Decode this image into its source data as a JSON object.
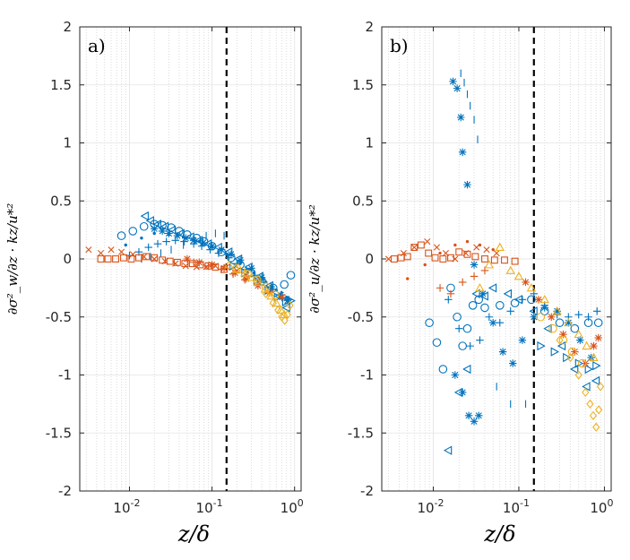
{
  "chart_data": [
    {
      "type": "scatter",
      "panel_label": "a)",
      "xscale": "log",
      "xlim": [
        0.0025,
        1.2
      ],
      "ylim": [
        -2,
        2
      ],
      "xticks": [
        0.01,
        0.1,
        1
      ],
      "xtick_labels": [
        {
          "base": "10",
          "exp": "-2"
        },
        {
          "base": "10",
          "exp": "-1"
        },
        {
          "base": "10",
          "exp": "0"
        }
      ],
      "yticks": [
        -2,
        -1.5,
        -1,
        -0.5,
        0,
        0.5,
        1,
        1.5,
        2
      ],
      "ytick_labels": [
        "-2",
        "-1.5",
        "-1",
        "-0.5",
        "0",
        "0.5",
        "1",
        "1.5",
        "2"
      ],
      "xlabel": "z/δ",
      "ylabel": "∂σ²_w/∂z · kz/u*²",
      "grid": true,
      "reference_line": {
        "x": 0.15,
        "style": "dashed"
      },
      "colors": {
        "blue": "#0072BD",
        "orange": "#D95319",
        "yellow": "#EDB120"
      },
      "series": [
        {
          "name": "blue-plus",
          "marker": "plus",
          "color": "#0072BD",
          "x": [
            0.01,
            0.013,
            0.017,
            0.022,
            0.028,
            0.036,
            0.046,
            0.06,
            0.075,
            0.095,
            0.12,
            0.16,
            0.2,
            0.26,
            0.33,
            0.42,
            0.55,
            0.7,
            0.85
          ],
          "y": [
            0.03,
            0.06,
            0.1,
            0.13,
            0.15,
            0.16,
            0.15,
            0.13,
            0.11,
            0.08,
            0.05,
            0.01,
            -0.04,
            -0.09,
            -0.14,
            -0.2,
            -0.26,
            -0.31,
            -0.35
          ]
        },
        {
          "name": "blue-circle",
          "marker": "circle",
          "color": "#0072BD",
          "x": [
            0.008,
            0.011,
            0.015,
            0.02,
            0.025,
            0.032,
            0.04,
            0.05,
            0.065,
            0.08,
            0.1,
            0.13,
            0.17,
            0.22,
            0.3,
            0.4,
            0.55,
            0.75,
            0.9
          ],
          "y": [
            0.2,
            0.24,
            0.28,
            0.3,
            0.29,
            0.27,
            0.24,
            0.21,
            0.18,
            0.15,
            0.11,
            0.06,
            0.01,
            -0.05,
            -0.12,
            -0.19,
            -0.25,
            -0.22,
            -0.14
          ]
        },
        {
          "name": "blue-triangle-left",
          "marker": "triangle-left",
          "color": "#0072BD",
          "x": [
            0.0155,
            0.018,
            0.022,
            0.027,
            0.033,
            0.042,
            0.055,
            0.07,
            0.09,
            0.12,
            0.16,
            0.21,
            0.28,
            0.38,
            0.5,
            0.65,
            0.8
          ],
          "y": [
            0.37,
            0.33,
            0.3,
            0.28,
            0.25,
            0.22,
            0.19,
            0.16,
            0.13,
            0.1,
            0.06,
            0.0,
            -0.07,
            -0.15,
            -0.23,
            -0.32,
            -0.42
          ]
        },
        {
          "name": "blue-star",
          "marker": "star",
          "color": "#0072BD",
          "x": [
            0.02,
            0.025,
            0.03,
            0.038,
            0.048,
            0.06,
            0.078,
            0.1,
            0.13,
            0.17,
            0.22,
            0.3,
            0.4,
            0.52,
            0.68,
            0.82
          ],
          "y": [
            0.26,
            0.24,
            0.22,
            0.2,
            0.18,
            0.16,
            0.14,
            0.11,
            0.08,
            0.04,
            -0.01,
            -0.08,
            -0.16,
            -0.24,
            -0.31,
            -0.36
          ]
        },
        {
          "name": "blue-vbar",
          "marker": "vbar",
          "color": "#0072BD",
          "x": [
            0.014,
            0.018,
            0.024,
            0.032,
            0.045,
            0.062,
            0.085,
            0.11,
            0.14
          ],
          "y": [
            0.0,
            0.02,
            0.05,
            0.08,
            0.12,
            0.16,
            0.2,
            0.22,
            0.2
          ]
        },
        {
          "name": "blue-triangle-right",
          "marker": "triangle-right",
          "color": "#0072BD",
          "x": [
            0.18,
            0.25,
            0.35,
            0.48,
            0.62,
            0.78,
            0.9
          ],
          "y": [
            -0.06,
            -0.12,
            -0.19,
            -0.27,
            -0.33,
            -0.37,
            -0.36
          ]
        },
        {
          "name": "blue-dot",
          "marker": "dot",
          "color": "#0072BD",
          "x": [
            0.009,
            0.014,
            0.02,
            0.03,
            0.045,
            0.07,
            0.1,
            0.15,
            0.22,
            0.32,
            0.45,
            0.6,
            0.8
          ],
          "y": [
            0.12,
            0.18,
            0.22,
            0.21,
            0.19,
            0.15,
            0.1,
            0.04,
            -0.04,
            -0.12,
            -0.2,
            -0.27,
            -0.33
          ]
        },
        {
          "name": "orange-x",
          "marker": "x",
          "color": "#D95319",
          "x": [
            0.0032,
            0.0045,
            0.006,
            0.008,
            0.011,
            0.015,
            0.02,
            0.027,
            0.036,
            0.048,
            0.065,
            0.085,
            0.11,
            0.15,
            0.2,
            0.26,
            0.35
          ],
          "y": [
            0.08,
            0.05,
            0.08,
            0.06,
            0.04,
            0.02,
            0.0,
            -0.02,
            -0.04,
            -0.06,
            -0.07,
            -0.07,
            -0.06,
            -0.07,
            -0.1,
            -0.14,
            -0.19
          ]
        },
        {
          "name": "orange-square",
          "marker": "square",
          "color": "#D95319",
          "x": [
            0.0045,
            0.0055,
            0.0068,
            0.0085,
            0.0105,
            0.013,
            0.016,
            0.02,
            0.025,
            0.031,
            0.038,
            0.047,
            0.058,
            0.072,
            0.09,
            0.11,
            0.14
          ],
          "y": [
            0.0,
            0.0,
            0.0,
            0.01,
            0.0,
            0.01,
            0.02,
            0.01,
            -0.01,
            -0.02,
            -0.03,
            -0.04,
            -0.04,
            -0.05,
            -0.06,
            -0.07,
            -0.09
          ]
        },
        {
          "name": "orange-star",
          "marker": "star",
          "color": "#D95319",
          "x": [
            0.05,
            0.07,
            0.1,
            0.14,
            0.19,
            0.26,
            0.36,
            0.5,
            0.7
          ],
          "y": [
            0.0,
            -0.03,
            -0.05,
            -0.08,
            -0.12,
            -0.17,
            -0.23,
            -0.29,
            -0.33
          ]
        },
        {
          "name": "orange-plus",
          "marker": "plus",
          "color": "#D95319",
          "x": [
            0.06,
            0.09,
            0.13,
            0.18,
            0.25
          ],
          "y": [
            -0.03,
            -0.06,
            -0.09,
            -0.13,
            -0.18
          ]
        },
        {
          "name": "yellow-diamond",
          "marker": "diamond",
          "color": "#EDB120",
          "x": [
            0.45,
            0.55,
            0.63,
            0.7,
            0.76,
            0.82,
            0.88
          ],
          "y": [
            -0.3,
            -0.38,
            -0.44,
            -0.5,
            -0.53,
            -0.48,
            -0.4
          ]
        },
        {
          "name": "yellow-triangle-up",
          "marker": "triangle-up",
          "color": "#EDB120",
          "x": [
            0.16,
            0.2,
            0.25,
            0.3,
            0.36,
            0.44,
            0.52,
            0.6,
            0.68,
            0.75
          ],
          "y": [
            -0.05,
            -0.09,
            -0.12,
            -0.16,
            -0.2,
            -0.26,
            -0.32,
            -0.38,
            -0.44,
            -0.48
          ]
        },
        {
          "name": "yellow-circle",
          "marker": "circle",
          "color": "#EDB120",
          "x": [
            0.2,
            0.27,
            0.35,
            0.45,
            0.58
          ],
          "y": [
            -0.08,
            -0.13,
            -0.18,
            -0.24,
            -0.31
          ]
        }
      ]
    },
    {
      "type": "scatter",
      "panel_label": "b)",
      "xscale": "log",
      "xlim": [
        0.0025,
        1.2
      ],
      "ylim": [
        -2,
        2
      ],
      "xticks": [
        0.01,
        0.1,
        1
      ],
      "xtick_labels": [
        {
          "base": "10",
          "exp": "-2"
        },
        {
          "base": "10",
          "exp": "-1"
        },
        {
          "base": "10",
          "exp": "0"
        }
      ],
      "yticks": [
        -2,
        -1.5,
        -1,
        -0.5,
        0,
        0.5,
        1,
        1.5,
        2
      ],
      "ytick_labels": [
        "-2",
        "-1.5",
        "-1",
        "-0.5",
        "0",
        "0.5",
        "1",
        "1.5",
        "2"
      ],
      "xlabel": "z/δ",
      "ylabel": "∂σ²_u/∂z · kz/u*²",
      "grid": true,
      "reference_line": {
        "x": 0.15,
        "style": "dashed"
      },
      "colors": {
        "blue": "#0072BD",
        "orange": "#D95319",
        "yellow": "#EDB120"
      },
      "series": [
        {
          "name": "blue-star",
          "marker": "star",
          "color": "#0072BD",
          "x": [
            0.017,
            0.019,
            0.021,
            0.022,
            0.025,
            0.03,
            0.038,
            0.05,
            0.065,
            0.085,
            0.11,
            0.15,
            0.2,
            0.28,
            0.38,
            0.52,
            0.7
          ],
          "y": [
            1.53,
            1.47,
            1.22,
            0.92,
            0.64,
            -0.05,
            -0.3,
            -0.55,
            -0.8,
            -0.9,
            -0.7,
            -0.5,
            -0.42,
            -0.45,
            -0.55,
            -0.7,
            -0.85
          ]
        },
        {
          "name": "blue-vbar",
          "marker": "vbar",
          "color": "#0072BD",
          "x": [
            0.021,
            0.023,
            0.025,
            0.027,
            0.03,
            0.033,
            0.055,
            0.08,
            0.12
          ],
          "y": [
            1.6,
            1.52,
            1.42,
            1.32,
            1.2,
            1.03,
            -1.1,
            -1.25,
            -1.25
          ]
        },
        {
          "name": "blue-circle",
          "marker": "circle",
          "color": "#0072BD",
          "x": [
            0.009,
            0.011,
            0.013,
            0.016,
            0.019,
            0.022,
            0.025,
            0.029,
            0.034,
            0.04,
            0.06,
            0.09,
            0.14,
            0.2,
            0.3,
            0.45,
            0.65,
            0.85
          ],
          "y": [
            -0.55,
            -0.72,
            -0.95,
            -0.25,
            -0.5,
            -0.75,
            -0.6,
            -0.4,
            -0.35,
            -0.42,
            -0.4,
            -0.38,
            -0.35,
            -0.45,
            -0.55,
            -0.6,
            -0.55,
            -0.55
          ]
        },
        {
          "name": "blue-triangle-left",
          "marker": "triangle-left",
          "color": "#0072BD",
          "x": [
            0.015,
            0.02,
            0.025,
            0.032,
            0.04,
            0.05,
            0.075,
            0.1,
            0.15,
            0.22,
            0.32,
            0.45,
            0.62,
            0.8
          ],
          "y": [
            -1.65,
            -1.15,
            -0.95,
            -0.3,
            -0.32,
            -0.25,
            -0.3,
            -0.35,
            -0.45,
            -0.6,
            -0.75,
            -0.95,
            -1.1,
            -1.05
          ]
        },
        {
          "name": "blue-star-2",
          "marker": "star",
          "color": "#0072BD",
          "x": [
            0.018,
            0.022,
            0.026,
            0.03,
            0.034
          ],
          "y": [
            -1.0,
            -1.15,
            -1.35,
            -1.4,
            -1.35
          ]
        },
        {
          "name": "blue-plus",
          "marker": "plus",
          "color": "#0072BD",
          "x": [
            0.015,
            0.02,
            0.027,
            0.035,
            0.045,
            0.06,
            0.08,
            0.11,
            0.15,
            0.2,
            0.28,
            0.38,
            0.5,
            0.65,
            0.82
          ],
          "y": [
            -0.35,
            -0.6,
            -0.75,
            -0.7,
            -0.5,
            -0.55,
            -0.45,
            -0.35,
            -0.3,
            -0.4,
            -0.48,
            -0.5,
            -0.48,
            -0.5,
            -0.45
          ]
        },
        {
          "name": "blue-triangle-right",
          "marker": "triangle-right",
          "color": "#0072BD",
          "x": [
            0.18,
            0.26,
            0.36,
            0.5,
            0.65,
            0.8
          ],
          "y": [
            -0.75,
            -0.8,
            -0.85,
            -0.9,
            -0.95,
            -0.92
          ]
        },
        {
          "name": "orange-x",
          "marker": "x",
          "color": "#D95319",
          "x": [
            0.003,
            0.0045,
            0.006,
            0.0085,
            0.011,
            0.014,
            0.018,
            0.024,
            0.032,
            0.042,
            0.055
          ],
          "y": [
            0.0,
            0.05,
            0.1,
            0.15,
            0.1,
            0.05,
            0.0,
            0.05,
            0.1,
            0.08,
            0.05
          ]
        },
        {
          "name": "orange-square",
          "marker": "square",
          "color": "#D95319",
          "x": [
            0.0035,
            0.0042,
            0.005,
            0.006,
            0.0072,
            0.0088,
            0.0105,
            0.013,
            0.016,
            0.02,
            0.025,
            0.031,
            0.04,
            0.052,
            0.068,
            0.09
          ],
          "y": [
            0.0,
            0.01,
            0.02,
            0.1,
            0.12,
            0.05,
            0.01,
            0.0,
            0.01,
            0.06,
            0.04,
            0.02,
            0.0,
            -0.01,
            -0.01,
            -0.02
          ]
        },
        {
          "name": "orange-dot",
          "marker": "dot",
          "color": "#D95319",
          "x": [
            0.005,
            0.008,
            0.012,
            0.018,
            0.025,
            0.035,
            0.05
          ],
          "y": [
            -0.17,
            -0.05,
            0.05,
            0.12,
            0.15,
            0.12,
            0.08
          ]
        },
        {
          "name": "orange-plus",
          "marker": "plus",
          "color": "#D95319",
          "x": [
            0.012,
            0.016,
            0.022,
            0.03,
            0.04
          ],
          "y": [
            -0.25,
            -0.3,
            -0.2,
            -0.15,
            -0.1
          ]
        },
        {
          "name": "orange-star",
          "marker": "star",
          "color": "#D95319",
          "x": [
            0.12,
            0.17,
            0.24,
            0.33,
            0.45,
            0.6,
            0.75,
            0.85
          ],
          "y": [
            -0.2,
            -0.35,
            -0.5,
            -0.65,
            -0.8,
            -0.9,
            -0.75,
            -0.68
          ]
        },
        {
          "name": "yellow-diamond",
          "marker": "diamond",
          "color": "#EDB120",
          "x": [
            0.3,
            0.4,
            0.5,
            0.6,
            0.68,
            0.74,
            0.8,
            0.86,
            0.9
          ],
          "y": [
            -0.7,
            -0.85,
            -1.0,
            -1.15,
            -1.25,
            -1.35,
            -1.45,
            -1.3,
            -1.1
          ]
        },
        {
          "name": "yellow-triangle-up",
          "marker": "triangle-up",
          "color": "#EDB120",
          "x": [
            0.035,
            0.045,
            0.06,
            0.08,
            0.1,
            0.14,
            0.2,
            0.28,
            0.38,
            0.5,
            0.62,
            0.75
          ],
          "y": [
            -0.25,
            -0.05,
            0.1,
            -0.1,
            -0.15,
            -0.25,
            -0.35,
            -0.45,
            -0.55,
            -0.65,
            -0.75,
            -0.85
          ]
        },
        {
          "name": "yellow-circle",
          "marker": "circle",
          "color": "#EDB120",
          "x": [
            0.18,
            0.25,
            0.33,
            0.42,
            0.55
          ],
          "y": [
            -0.5,
            -0.6,
            -0.7,
            -0.8,
            -0.9
          ]
        }
      ]
    }
  ]
}
